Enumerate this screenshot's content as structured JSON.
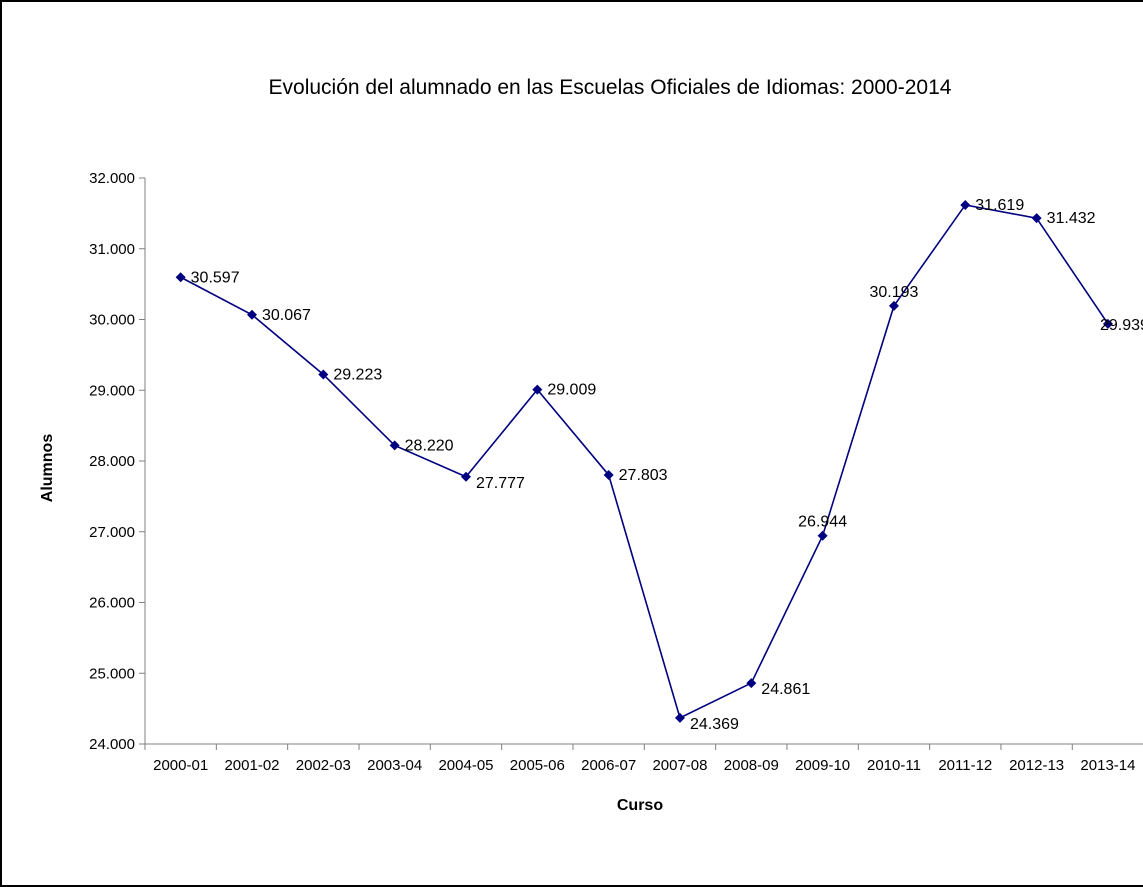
{
  "chart_data": {
    "type": "line",
    "title": "Evolución del alumnado en las Escuelas Oficiales de Idiomas: 2000-2014",
    "xlabel": "Curso",
    "ylabel": "Alumnos",
    "ylim": [
      24000,
      32000
    ],
    "yticks": [
      24000,
      25000,
      26000,
      27000,
      28000,
      29000,
      30000,
      31000,
      32000
    ],
    "ytick_labels": [
      "24.000",
      "25.000",
      "26.000",
      "27.000",
      "28.000",
      "29.000",
      "30.000",
      "31.000",
      "32.000"
    ],
    "categories": [
      "2000-01",
      "2001-02",
      "2002-03",
      "2003-04",
      "2004-05",
      "2005-06",
      "2006-07",
      "2007-08",
      "2008-09",
      "2009-10",
      "2010-11",
      "2011-12",
      "2012-13",
      "2013-14"
    ],
    "series": [
      {
        "values": [
          30597,
          30067,
          29223,
          28220,
          27777,
          29009,
          27803,
          24369,
          24861,
          26944,
          30193,
          31619,
          31432,
          29939
        ],
        "labels": [
          "30.597",
          "30.067",
          "29.223",
          "28.220",
          "27.777",
          "29.009",
          "27.803",
          "24.369",
          "24.861",
          "26.944",
          "30.193",
          "31.619",
          "31.432",
          "29.939"
        ],
        "color": "#000080"
      }
    ],
    "grid": false,
    "legend": "none"
  }
}
